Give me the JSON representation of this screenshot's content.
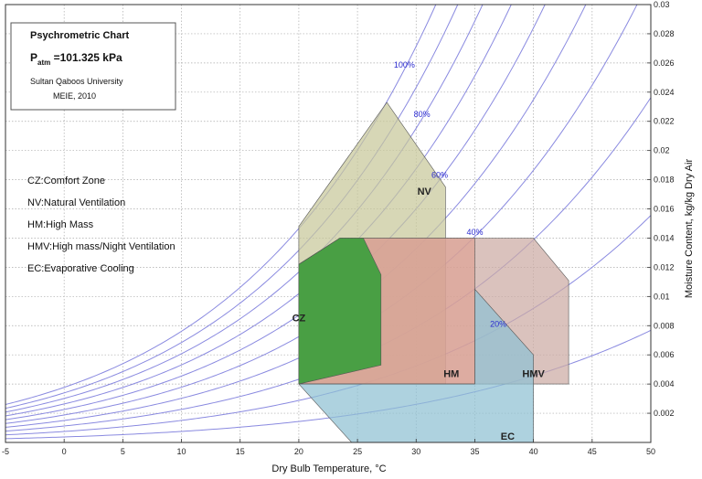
{
  "info_box": {
    "title": "Psychrometric Chart",
    "patm_symbol": "P",
    "patm_sub": "atm",
    "patm_value": " =101.325 kPa",
    "org": "Sultan Qaboos University",
    "dept": "MEIE, 2010"
  },
  "legend": [
    "CZ:Comfort Zone",
    "NV:Natural Ventilation",
    "HM:High Mass",
    "HMV:High mass/Night Ventilation",
    "EC:Evaporative Cooling"
  ],
  "chart_data": {
    "type": "area",
    "xlabel": "Dry Bulb Temperature,  °C",
    "ylabel": "Moisture Content, kg/kg Dry Air",
    "xlim": [
      -5,
      50
    ],
    "ylim": [
      0,
      0.03
    ],
    "xticks": [
      "-5",
      "0",
      "5",
      "10",
      "15",
      "20",
      "25",
      "30",
      "35",
      "40",
      "45",
      "50"
    ],
    "yticks": [
      "0.002",
      "0.004",
      "0.006",
      "0.008",
      "0.01",
      "0.012",
      "0.014",
      "0.016",
      "0.018",
      "0.02",
      "0.022",
      "0.024",
      "0.026",
      "0.028",
      "0.03"
    ],
    "grid": true,
    "pressure_kpa": 101.325,
    "rh_curves": [
      10,
      20,
      30,
      40,
      50,
      60,
      70,
      80,
      90,
      100
    ],
    "rh_labels": [
      {
        "text": "100%",
        "rh": 100,
        "x": 29
      },
      {
        "text": "80%",
        "rh": 80,
        "x": 30.5
      },
      {
        "text": "60%",
        "rh": 60,
        "x": 32
      },
      {
        "text": "40%",
        "rh": 40,
        "x": 35
      },
      {
        "text": "20%",
        "rh": 20,
        "x": 37
      }
    ],
    "zones": [
      {
        "name": "NV",
        "color": "#c8c89a",
        "opacity": 0.72,
        "points": [
          [
            20,
            0.004
          ],
          [
            20,
            0.0148
          ],
          [
            27.5,
            0.0233
          ],
          [
            32.5,
            0.0175
          ],
          [
            32.5,
            0.004
          ]
        ],
        "label_at": [
          30.7,
          0.0168
        ]
      },
      {
        "name": "HMV",
        "color": "#ccaaa4",
        "opacity": 0.72,
        "points": [
          [
            20,
            0.004
          ],
          [
            20,
            0.0122
          ],
          [
            23.5,
            0.014
          ],
          [
            40,
            0.014
          ],
          [
            43,
            0.0111
          ],
          [
            43,
            0.004
          ]
        ],
        "label_at": [
          40,
          0.0043
        ]
      },
      {
        "name": "HM",
        "color": "#e09a8a",
        "opacity": 0.55,
        "points": [
          [
            20,
            0.004
          ],
          [
            20,
            0.0122
          ],
          [
            23.5,
            0.014
          ],
          [
            35,
            0.014
          ],
          [
            35,
            0.004
          ]
        ],
        "label_at": [
          33,
          0.0043
        ]
      },
      {
        "name": "EC",
        "color": "#8fc0d2",
        "opacity": 0.72,
        "points": [
          [
            20,
            0.004
          ],
          [
            24.5,
            0.0
          ],
          [
            40,
            0.0
          ],
          [
            40,
            0.006
          ],
          [
            35,
            0.0105
          ],
          [
            35,
            0.004
          ]
        ],
        "label_at": [
          37.8,
          0.0
        ]
      },
      {
        "name": "CZ",
        "color": "#3d9e3d",
        "opacity": 0.92,
        "points": [
          [
            20,
            0.004
          ],
          [
            20,
            0.0122
          ],
          [
            23.5,
            0.014
          ],
          [
            25.5,
            0.014
          ],
          [
            27,
            0.0115
          ],
          [
            27,
            0.0053
          ]
        ],
        "label_at": [
          20,
          0.0081
        ]
      }
    ]
  }
}
